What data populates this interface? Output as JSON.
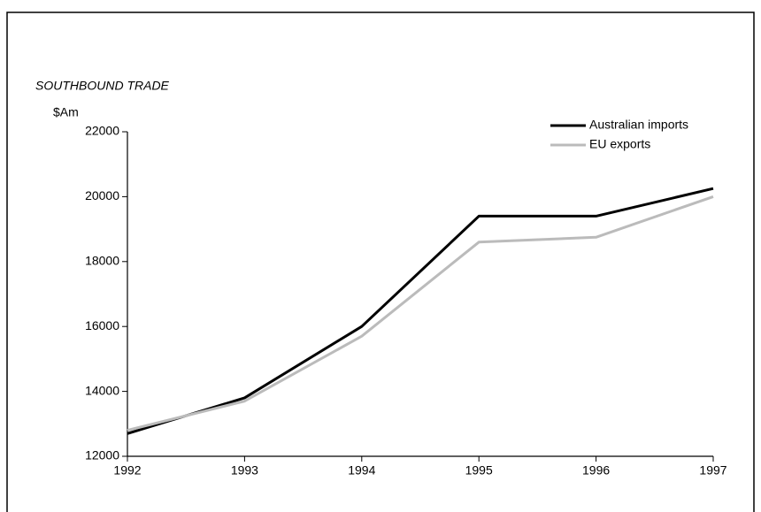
{
  "chart_data": {
    "type": "line",
    "title": "SOUTHBOUND TRADE",
    "ylabel": "$Am",
    "x": [
      1992,
      1993,
      1994,
      1995,
      1996,
      1997
    ],
    "series": [
      {
        "name": "Australian imports",
        "color": "#000000",
        "values": [
          12700,
          13800,
          16000,
          19400,
          19400,
          20250
        ]
      },
      {
        "name": "EU exports",
        "color": "#bbbbbb",
        "values": [
          12800,
          13700,
          15700,
          18600,
          18750,
          20000
        ]
      }
    ],
    "xlim": [
      1992,
      1997
    ],
    "xticks": [
      1992,
      1993,
      1994,
      1995,
      1996,
      1997
    ],
    "ylim": [
      12000,
      22000
    ],
    "yticks": [
      12000,
      14000,
      16000,
      18000,
      20000,
      22000
    ],
    "legend": "upper right"
  }
}
